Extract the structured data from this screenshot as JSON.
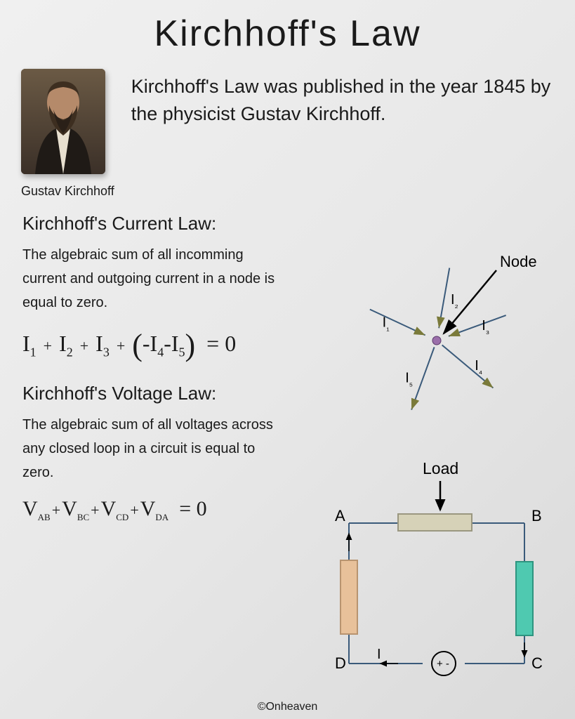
{
  "title": "Kirchhoff's  Law",
  "portrait": {
    "caption": "Gustav Kirchhoff",
    "colors": {
      "bg_top": "#6b5a45",
      "bg_bottom": "#3b3028",
      "face": "#b58a6a",
      "beard": "#3d2e20",
      "coat": "#1f1a16"
    }
  },
  "intro": "Kirchhoff's Law was published in the year 1845 by the physicist Gustav Kirchhoff.",
  "kcl": {
    "heading": "Kirchhoff's Current Law:",
    "body": "The algebraic sum of all incomming current and outgoing current in a node is equal to zero.",
    "equation_terms": [
      "I₁",
      "I₂",
      "I₃",
      "(-I₄-I₅)"
    ],
    "equation_rhs": "0"
  },
  "kvl": {
    "heading": "Kirchhoff's Voltage Law:",
    "body": "The algebraic sum of all voltages across any closed loop in a circuit is equal to zero.",
    "equation_terms": [
      "V_AB",
      "V_BC",
      "V_CD",
      "V_DA"
    ],
    "equation_rhs": "0"
  },
  "node_diagram": {
    "label_node": "Node",
    "node_color": "#9b6faa",
    "line_color": "#3a5a7a",
    "arrow_color": "#7a7a3a",
    "branches": [
      {
        "label": "I₁",
        "angle": 155,
        "direction": "in"
      },
      {
        "label": "I₂",
        "angle": 80,
        "direction": "in"
      },
      {
        "label": "I₃",
        "angle": 20,
        "direction": "in"
      },
      {
        "label": "I₄",
        "angle": 320,
        "direction": "out"
      },
      {
        "label": "I₅",
        "angle": 250,
        "direction": "out"
      }
    ]
  },
  "circuit_diagram": {
    "label_load": "Load",
    "corners": [
      "A",
      "B",
      "C",
      "D"
    ],
    "current_label": "I",
    "source_label": "+ -",
    "line_color": "#3a5a7a",
    "load_top_color": "#d6d2b8",
    "load_right_color": "#4fc9b0",
    "load_left_color": "#e8c19a"
  },
  "footer": "©Onheaven"
}
